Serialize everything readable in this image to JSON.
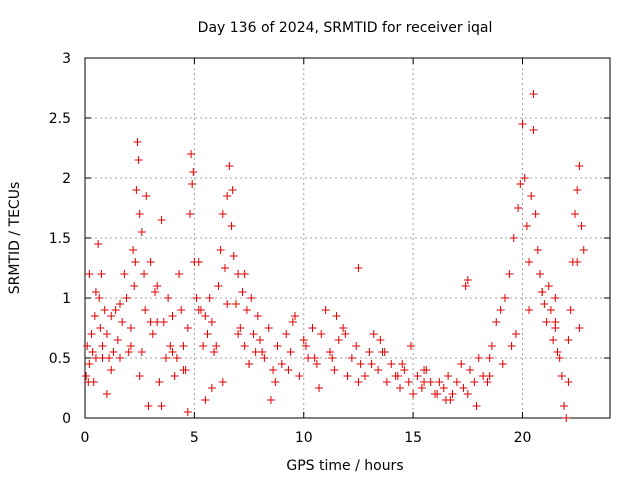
{
  "colors": {
    "series": "#e00000",
    "grid": "#a0a0a0",
    "axis": "#000000"
  },
  "chart_data": {
    "type": "scatter",
    "title": "Day 136 of 2024, SRMTID for receiver iqal",
    "xlabel": "GPS time / hours",
    "ylabel": "SRMTID / TECUs",
    "xlim": [
      0,
      24
    ],
    "ylim": [
      0,
      3
    ],
    "xticks": [
      0,
      5,
      10,
      15,
      20
    ],
    "yticks": [
      0,
      0.5,
      1,
      1.5,
      2,
      2.5,
      3
    ],
    "ytick_labels": [
      "0",
      "0.5",
      "1",
      "1.5",
      "2",
      "2.5",
      "3"
    ],
    "grid": true,
    "marker": "+",
    "series": [
      {
        "name": "SRMTID",
        "x": [
          0.05,
          0.1,
          0.15,
          0.2,
          0.3,
          0.35,
          0.4,
          0.45,
          0.5,
          0.6,
          0.65,
          0.7,
          0.75,
          0.8,
          0.9,
          1.0,
          1.1,
          1.2,
          1.3,
          1.4,
          1.5,
          1.6,
          1.7,
          1.8,
          1.9,
          2.0,
          2.1,
          2.2,
          2.25,
          2.3,
          2.35,
          2.4,
          2.45,
          2.5,
          2.6,
          2.7,
          2.75,
          2.8,
          2.9,
          3.0,
          3.1,
          3.2,
          3.3,
          3.4,
          3.5,
          3.6,
          3.7,
          3.8,
          3.9,
          4.0,
          4.1,
          4.2,
          4.3,
          4.4,
          4.5,
          4.6,
          4.7,
          4.8,
          4.85,
          4.9,
          4.95,
          5.0,
          5.1,
          5.2,
          5.3,
          5.4,
          5.5,
          5.6,
          5.7,
          5.8,
          5.9,
          6.0,
          6.1,
          6.2,
          6.3,
          6.4,
          6.5,
          6.6,
          6.7,
          6.75,
          6.8,
          6.9,
          7.0,
          7.1,
          7.2,
          7.3,
          7.4,
          7.5,
          7.6,
          7.7,
          7.8,
          7.9,
          8.0,
          8.2,
          8.4,
          8.6,
          8.8,
          9.0,
          9.2,
          9.4,
          9.6,
          9.8,
          10.0,
          10.2,
          10.4,
          10.6,
          10.8,
          11.0,
          11.2,
          11.4,
          11.6,
          11.8,
          12.0,
          12.2,
          12.4,
          12.6,
          12.8,
          13.0,
          13.2,
          13.4,
          13.6,
          13.8,
          14.0,
          14.2,
          14.4,
          14.6,
          14.8,
          15.0,
          15.2,
          15.4,
          15.6,
          15.8,
          16.0,
          16.2,
          16.4,
          16.6,
          16.8,
          17.0,
          17.2,
          17.4,
          17.5,
          17.6,
          17.8,
          18.0,
          18.2,
          18.4,
          18.6,
          18.8,
          19.0,
          19.2,
          19.4,
          19.6,
          19.8,
          19.9,
          20.0,
          20.1,
          20.2,
          20.3,
          20.4,
          20.5,
          20.6,
          20.7,
          20.8,
          20.9,
          21.0,
          21.1,
          21.2,
          21.3,
          21.4,
          21.5,
          21.6,
          21.7,
          21.8,
          21.9,
          22.0,
          22.1,
          22.2,
          22.3,
          22.4,
          22.5,
          22.6,
          22.7,
          22.8,
          0.2,
          0.5,
          0.8,
          1.2,
          1.6,
          2.1,
          2.5,
          3.0,
          3.5,
          4.0,
          4.5,
          5.2,
          5.8,
          6.3,
          7.0,
          7.5,
          8.1,
          8.7,
          9.3,
          10.1,
          10.7,
          11.3,
          11.9,
          12.5,
          13.1,
          13.7,
          14.3,
          14.9,
          15.5,
          16.1,
          16.7,
          17.3,
          17.9,
          18.5,
          19.1,
          19.7,
          20.3,
          20.9,
          21.5,
          22.1,
          22.6,
          1.0,
          2.6,
          3.3,
          4.7,
          5.5,
          6.5,
          7.3,
          8.5,
          9.5,
          10.5,
          11.5,
          12.5,
          13.5,
          14.5,
          15.5,
          16.5,
          17.5,
          18.5,
          19.5,
          20.5,
          21.5,
          22.5
        ],
        "y": [
          0.35,
          0.6,
          0.3,
          0.45,
          0.7,
          0.55,
          0.3,
          0.85,
          0.5,
          1.45,
          1.0,
          0.75,
          1.2,
          0.6,
          0.9,
          0.7,
          0.5,
          0.85,
          0.55,
          0.9,
          0.65,
          0.5,
          0.8,
          1.2,
          1.0,
          0.55,
          0.75,
          1.4,
          1.1,
          1.3,
          1.9,
          2.3,
          2.15,
          1.7,
          1.55,
          1.2,
          0.9,
          1.85,
          0.1,
          1.3,
          0.7,
          1.05,
          0.8,
          0.3,
          1.65,
          0.8,
          0.5,
          1.0,
          0.6,
          0.85,
          0.35,
          0.5,
          1.2,
          0.9,
          0.6,
          0.4,
          0.75,
          1.7,
          2.2,
          1.95,
          2.05,
          1.3,
          1.0,
          1.3,
          0.9,
          0.6,
          0.85,
          0.7,
          1.0,
          0.8,
          0.55,
          0.6,
          1.1,
          1.4,
          1.7,
          1.25,
          1.85,
          2.1,
          1.6,
          1.9,
          1.35,
          0.95,
          1.2,
          0.75,
          1.05,
          0.6,
          0.9,
          0.45,
          1.0,
          0.7,
          0.55,
          0.85,
          0.65,
          0.5,
          0.75,
          0.4,
          0.6,
          0.45,
          0.7,
          0.55,
          0.85,
          0.35,
          0.65,
          0.5,
          0.75,
          0.45,
          0.7,
          0.9,
          0.55,
          0.4,
          0.65,
          0.75,
          0.35,
          0.5,
          0.6,
          0.45,
          0.35,
          0.55,
          0.7,
          0.4,
          0.55,
          0.3,
          0.45,
          0.35,
          0.25,
          0.4,
          0.3,
          0.2,
          0.35,
          0.25,
          0.4,
          0.3,
          0.2,
          0.3,
          0.25,
          0.35,
          0.2,
          0.3,
          0.45,
          1.1,
          1.15,
          0.4,
          0.3,
          0.5,
          0.35,
          0.3,
          0.6,
          0.8,
          0.9,
          1.0,
          1.2,
          1.5,
          1.75,
          1.95,
          2.45,
          2.0,
          1.6,
          1.3,
          1.85,
          2.7,
          1.7,
          1.4,
          1.2,
          1.05,
          0.95,
          0.8,
          1.1,
          0.9,
          0.65,
          0.75,
          0.55,
          0.5,
          0.35,
          0.1,
          0.0,
          0.65,
          0.9,
          1.3,
          1.7,
          1.9,
          2.1,
          1.6,
          1.4,
          1.2,
          1.05,
          0.5,
          0.4,
          0.95,
          0.6,
          0.35,
          0.8,
          0.1,
          0.55,
          0.4,
          0.9,
          0.25,
          0.3,
          0.7,
          0.45,
          0.55,
          0.3,
          0.4,
          0.6,
          0.25,
          0.5,
          0.7,
          0.3,
          0.45,
          0.55,
          0.35,
          0.6,
          0.4,
          0.2,
          0.15,
          0.25,
          0.1,
          0.35,
          0.45,
          0.7,
          0.9,
          1.05,
          0.8,
          0.3,
          0.75,
          0.2,
          0.55,
          1.1,
          0.05,
          0.15,
          0.95,
          1.2,
          0.15,
          0.8,
          0.5,
          0.85,
          1.25,
          0.65,
          0.45,
          0.3,
          0.15,
          0.2,
          0.5,
          0.6,
          2.4,
          1.0,
          1.3
        ]
      }
    ]
  }
}
